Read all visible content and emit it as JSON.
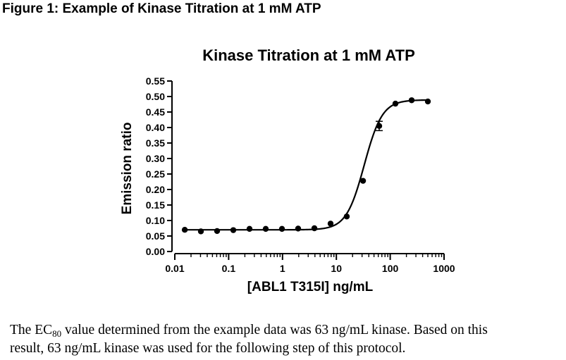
{
  "figure_title": "Figure 1: Example of Kinase Titration at 1 mM ATP",
  "caption": {
    "prefix": "The EC",
    "subscript": "80",
    "line1_rest": " value determined from the example data was 63 ng/mL kinase.  Based on this",
    "line2": "result, 63 ng/mL kinase was used for the following step of this protocol."
  },
  "chart_data": {
    "type": "scatter",
    "title": "Kinase Titration at 1 mM ATP",
    "xlabel": "[ABL1 T315I] ng/mL",
    "ylabel": "Emission ratio",
    "x_scale": "log",
    "xlim": [
      0.01,
      1000
    ],
    "ylim": [
      0,
      0.55
    ],
    "x_ticks": [
      0.01,
      0.1,
      1,
      10,
      100,
      1000
    ],
    "x_tick_labels": [
      "0.01",
      "0.1",
      "1",
      "10",
      "100",
      "1000"
    ],
    "y_ticks": [
      0,
      0.05,
      0.1,
      0.15,
      0.2,
      0.25,
      0.3,
      0.35,
      0.4,
      0.45,
      0.5,
      0.55
    ],
    "y_tick_labels": [
      "0.00",
      "0.05",
      "0.10",
      "0.15",
      "0.20",
      "0.25",
      "0.30",
      "0.35",
      "0.40",
      "0.45",
      "0.50",
      "0.55"
    ],
    "grid": false,
    "legend": "none",
    "points": [
      {
        "x": 0.0153,
        "y": 0.07
      },
      {
        "x": 0.0305,
        "y": 0.065
      },
      {
        "x": 0.061,
        "y": 0.066
      },
      {
        "x": 0.122,
        "y": 0.069
      },
      {
        "x": 0.244,
        "y": 0.073
      },
      {
        "x": 0.488,
        "y": 0.073
      },
      {
        "x": 0.977,
        "y": 0.073
      },
      {
        "x": 1.95,
        "y": 0.074
      },
      {
        "x": 3.91,
        "y": 0.075
      },
      {
        "x": 7.81,
        "y": 0.09
      },
      {
        "x": 15.6,
        "y": 0.113
      },
      {
        "x": 31.3,
        "y": 0.228
      },
      {
        "x": 62.5,
        "y": 0.405,
        "err": 0.015
      },
      {
        "x": 125,
        "y": 0.477
      },
      {
        "x": 250,
        "y": 0.488
      },
      {
        "x": 500,
        "y": 0.484
      }
    ],
    "fit": {
      "bottom": 0.07,
      "top": 0.489,
      "ec50": 33,
      "hill": 2.6
    }
  }
}
